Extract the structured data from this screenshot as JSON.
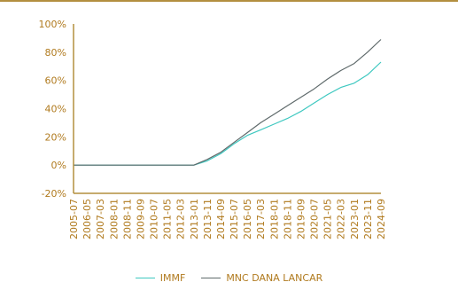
{
  "colors": {
    "header_rule": "#b38f3f",
    "axis": "#b38f3f",
    "label": "#b07a1e",
    "immf": "#3ec8c0",
    "mnc": "#5f6a6b"
  },
  "chart_data": {
    "type": "line",
    "title": "",
    "xlabel": "",
    "ylabel": "",
    "ylim": [
      -20,
      100
    ],
    "y_ticks": [
      "100%",
      "80%",
      "60%",
      "40%",
      "20%",
      "0%",
      "-20%"
    ],
    "y_tick_values": [
      100,
      80,
      60,
      40,
      20,
      0,
      -20
    ],
    "x_range": [
      "2005-07",
      "2024-09"
    ],
    "x_ticks": [
      "2005-07",
      "2006-05",
      "2007-03",
      "2008-01",
      "2008-11",
      "2009-09",
      "2010-07",
      "2011-05",
      "2012-03",
      "2013-01",
      "2013-11",
      "2014-09",
      "2015-07",
      "2016-05",
      "2017-03",
      "2018-01",
      "2018-11",
      "2019-09",
      "2020-07",
      "2021-05",
      "2022-03",
      "2023-01",
      "2023-11",
      "2024-09"
    ],
    "legend_position": "bottom",
    "grid": false,
    "series": [
      {
        "name": "IMMF",
        "x": [
          "2005-07",
          "2013-01",
          "2013-11",
          "2014-09",
          "2015-07",
          "2016-05",
          "2017-03",
          "2018-01",
          "2018-11",
          "2019-09",
          "2020-07",
          "2021-05",
          "2022-03",
          "2023-01",
          "2023-11",
          "2024-09"
        ],
        "values": [
          0,
          0,
          3,
          8,
          15,
          21,
          25,
          29,
          33,
          38,
          44,
          50,
          55,
          58,
          64,
          73
        ]
      },
      {
        "name": "MNC DANA LANCAR",
        "x": [
          "2005-07",
          "2013-01",
          "2013-11",
          "2014-09",
          "2015-07",
          "2016-05",
          "2017-03",
          "2018-01",
          "2018-11",
          "2019-09",
          "2020-07",
          "2021-05",
          "2022-03",
          "2023-01",
          "2023-11",
          "2024-09"
        ],
        "values": [
          0,
          0,
          4,
          9,
          16,
          23,
          30,
          36,
          42,
          48,
          54,
          61,
          67,
          72,
          80,
          89
        ]
      }
    ]
  }
}
